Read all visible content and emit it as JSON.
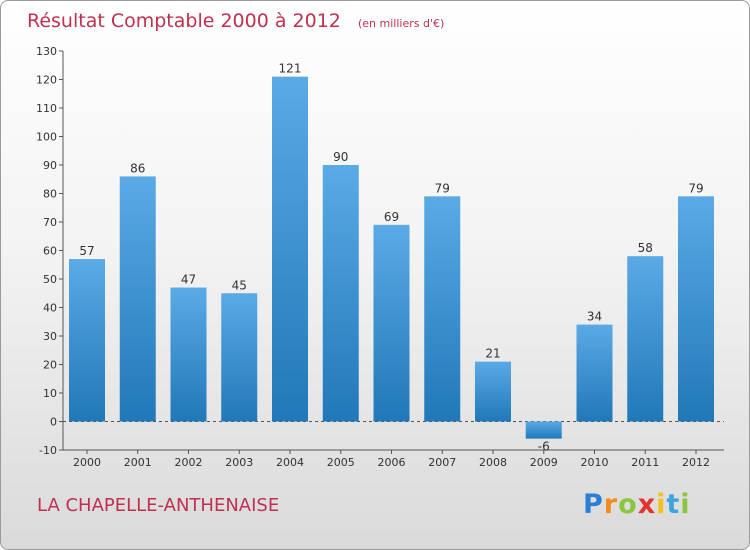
{
  "commune": "LA CHAPELLE-ANTHENAISE",
  "logo": {
    "letters": [
      "P",
      "r",
      "o",
      "x",
      "i",
      "t",
      "i"
    ],
    "colors": [
      "#2a7fd4",
      "#f28c1e",
      "#8cc63f",
      "#e2332c",
      "#f2c11b",
      "#3aa6dd",
      "#8cc63f"
    ]
  },
  "colors": {
    "bar_top": "#5aaae6",
    "bar_bottom": "#2178b8",
    "title": "#c0304f",
    "axis": "#333333"
  },
  "chart_data": {
    "type": "bar",
    "title": "Résultat Comptable 2000 à 2012",
    "subtitle": "(en milliers d'€)",
    "categories": [
      "2000",
      "2001",
      "2002",
      "2003",
      "2004",
      "2005",
      "2006",
      "2007",
      "2008",
      "2009",
      "2010",
      "2011",
      "2012"
    ],
    "values": [
      57,
      86,
      47,
      45,
      121,
      90,
      69,
      79,
      21,
      -6,
      34,
      58,
      79
    ],
    "ylim": [
      -10,
      130
    ],
    "yticks": [
      -10,
      0,
      10,
      20,
      30,
      40,
      50,
      60,
      70,
      80,
      90,
      100,
      110,
      120,
      130
    ],
    "grid": false
  }
}
